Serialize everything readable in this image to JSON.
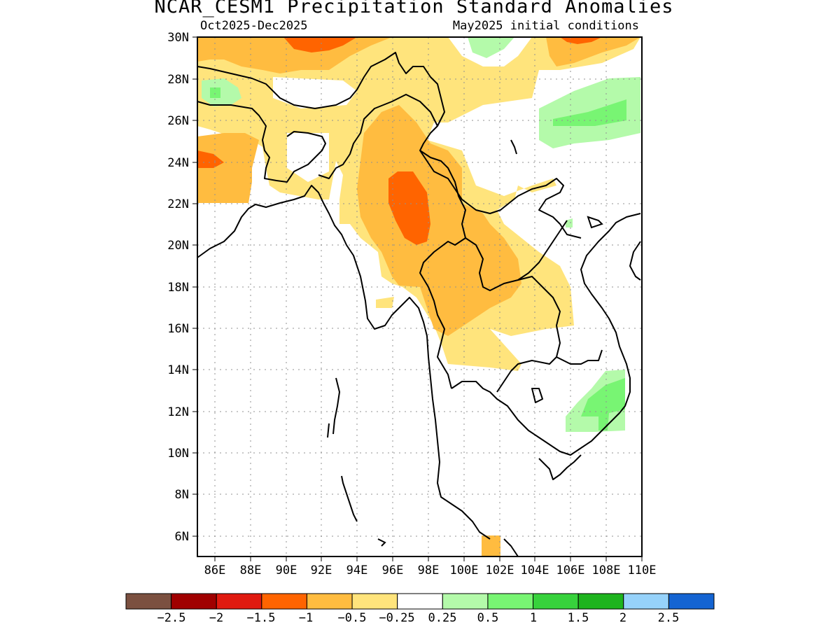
{
  "title": "NCAR_CESM1 Precipitation Standard Anomalies",
  "subtitle_left": "Oct2025-Dec2025",
  "subtitle_right": "May2025 initial conditions",
  "map": {
    "lon_range": [
      85,
      110
    ],
    "lat_range": [
      5,
      30
    ],
    "lat_ticks": [
      "30N",
      "28N",
      "26N",
      "24N",
      "22N",
      "20N",
      "18N",
      "16N",
      "14N",
      "12N",
      "10N",
      "8N",
      "6N"
    ],
    "lon_ticks": [
      "86E",
      "88E",
      "90E",
      "92E",
      "94E",
      "96E",
      "98E",
      "100E",
      "102E",
      "104E",
      "106E",
      "108E",
      "110E"
    ],
    "grid": true
  },
  "legend": {
    "colors": [
      "#7b5040",
      "#a00000",
      "#e01a10",
      "#ff6400",
      "#ffbc40",
      "#ffe47c",
      "#ffffff",
      "#b4faaa",
      "#78f573",
      "#37d23c",
      "#1eb41e",
      "#96d2fa",
      "#1464d2"
    ],
    "labels": [
      "-2.5",
      "-2",
      "-1.5",
      "-1",
      "-0.5",
      "-0.25",
      "0.25",
      "0.5",
      "1",
      "1.5",
      "2",
      "2.5"
    ]
  }
}
